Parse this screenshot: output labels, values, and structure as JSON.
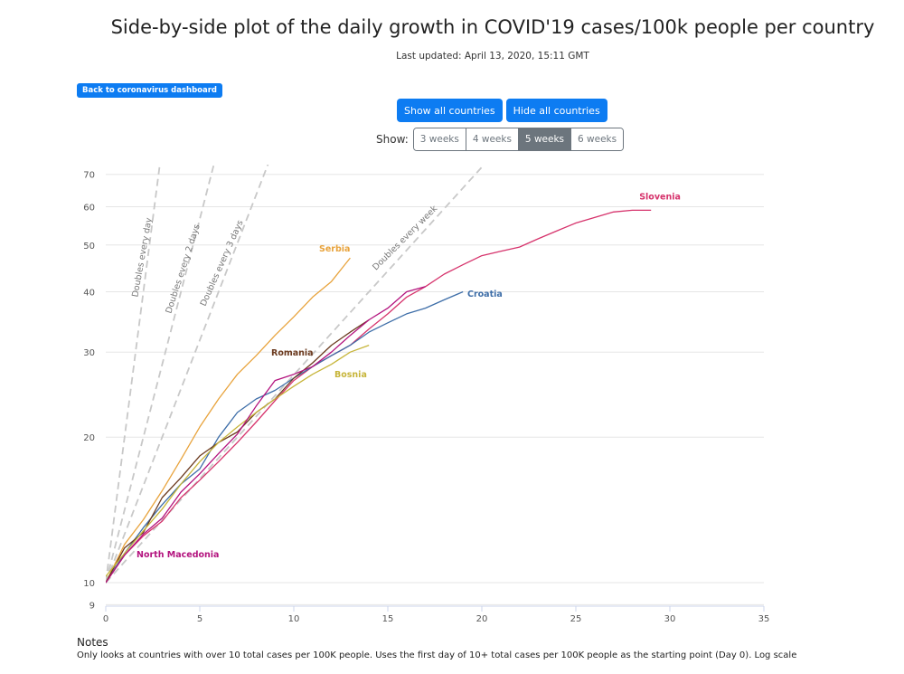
{
  "page": {
    "title": "Side-by-side plot of the daily growth in COVID'19 cases/100k people per country",
    "last_updated": "Last updated: April 13, 2020, 15:11 GMT",
    "back_button": "Back to coronavirus dashboard"
  },
  "controls": {
    "show_all": "Show all countries",
    "hide_all": "Hide all countries",
    "show_label": "Show:",
    "week_options": [
      "3 weeks",
      "4 weeks",
      "5 weeks",
      "6 weeks"
    ],
    "selected_option": "5 weeks"
  },
  "notes": {
    "title": "Notes",
    "text": "Only looks at countries with over 10 total cases per 100K people. Uses the first day of 10+ total cases per 100K people as the starting point (Day 0). Log scale"
  },
  "chart_data": {
    "type": "line",
    "title": "",
    "xlabel": "",
    "ylabel": "",
    "y_scale": "log",
    "xlim": [
      0,
      35
    ],
    "ylim": [
      9,
      70
    ],
    "x_ticks": [
      0,
      5,
      10,
      15,
      20,
      25,
      30,
      35
    ],
    "y_ticks": [
      9,
      10,
      20,
      30,
      40,
      50,
      60,
      70
    ],
    "grid": true,
    "series": [
      {
        "name": "Slovenia",
        "color": "#d6336c",
        "x": [
          0,
          1,
          2,
          3,
          4,
          5,
          6,
          7,
          8,
          9,
          10,
          11,
          12,
          13,
          14,
          15,
          16,
          17,
          18,
          19,
          20,
          21,
          22,
          23,
          24,
          25,
          26,
          27,
          28,
          29
        ],
        "y": [
          10,
          11.4,
          12.5,
          13.4,
          15,
          16.3,
          17.8,
          19.5,
          21.5,
          23.8,
          26.2,
          28,
          29.5,
          31,
          33.5,
          36,
          39,
          41,
          43.5,
          45.5,
          47.5,
          48.5,
          49.5,
          51.5,
          53.5,
          55.5,
          57,
          58.5,
          59,
          59
        ]
      },
      {
        "name": "Croatia",
        "color": "#3e6ea8",
        "x": [
          0,
          1,
          2,
          3,
          4,
          5,
          6,
          7,
          8,
          9,
          10,
          11,
          12,
          13,
          14,
          15,
          16,
          17,
          18,
          19
        ],
        "y": [
          10,
          11.5,
          13,
          14.5,
          16,
          17.2,
          20,
          22.5,
          24,
          25,
          26.5,
          28,
          29.5,
          31,
          33,
          34.5,
          36,
          37,
          38.5,
          40
        ]
      },
      {
        "name": "Serbia",
        "color": "#e8a33c",
        "x": [
          0,
          1,
          2,
          3,
          4,
          5,
          6,
          7,
          8,
          9,
          10,
          11,
          12,
          13
        ],
        "y": [
          10,
          12,
          13.5,
          15.5,
          18,
          21,
          24,
          27,
          29.5,
          32.5,
          35.5,
          39,
          42,
          47
        ]
      },
      {
        "name": "Romania",
        "color": "#6b3a1f",
        "x": [
          0,
          1,
          2,
          3,
          4,
          5,
          6,
          7,
          8,
          9,
          10,
          11,
          12,
          13,
          14
        ],
        "y": [
          10,
          11.8,
          12.7,
          15,
          16.5,
          18.3,
          19.5,
          20.5,
          22.5,
          24,
          26.5,
          28.5,
          31,
          33,
          35
        ]
      },
      {
        "name": "Bosnia",
        "color": "#c7b53a",
        "x": [
          0,
          1,
          2,
          3,
          4,
          5,
          6,
          7,
          8,
          9,
          10,
          11,
          12,
          13,
          14
        ],
        "y": [
          10.3,
          11.5,
          12.8,
          14.2,
          16,
          17.8,
          19.5,
          21,
          22.5,
          24,
          25.5,
          27,
          28.3,
          30,
          31
        ]
      },
      {
        "name": "North Macedonia",
        "color": "#b3137e",
        "x": [
          0,
          1,
          2,
          3,
          4,
          5,
          6,
          7,
          8,
          9,
          10,
          11,
          12,
          13,
          14,
          15,
          16,
          17
        ],
        "y": [
          10,
          11.4,
          12.6,
          13.6,
          15.4,
          16.8,
          18.5,
          20.3,
          23.2,
          26.2,
          27,
          28,
          30,
          32.5,
          35,
          37,
          40,
          41
        ]
      },
      {
        "name": "Doubles every day",
        "dashed": true,
        "color": "#c8c8c8",
        "doubling_days": 1
      },
      {
        "name": "Doubles every 2 days",
        "dashed": true,
        "color": "#c8c8c8",
        "doubling_days": 2
      },
      {
        "name": "Doubles every 3 days",
        "dashed": true,
        "color": "#c8c8c8",
        "doubling_days": 3
      },
      {
        "name": "Doubles every week",
        "dashed": true,
        "color": "#c8c8c8",
        "doubling_days": 7
      }
    ]
  }
}
